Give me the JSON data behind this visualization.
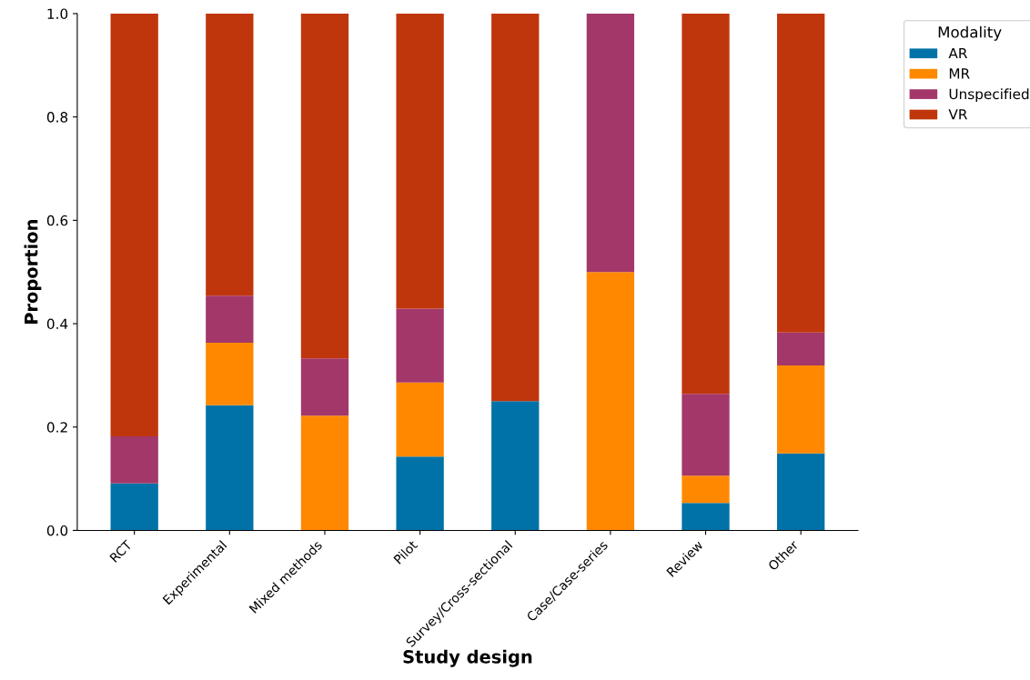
{
  "chart_data": {
    "type": "bar",
    "stacked": true,
    "xlabel": "Study design",
    "ylabel": "Proportion",
    "legend_title": "Modality",
    "legend": "top right",
    "categories": [
      "RCT",
      "Experimental",
      "Mixed methods",
      "Pilot",
      "Survey/Cross-sectional",
      "Case/Case-series",
      "Review",
      "Other"
    ],
    "series": [
      {
        "name": "AR",
        "color": "#0072a8",
        "values": [
          0.091,
          0.242,
          0,
          0.143,
          0.25,
          0,
          0.053,
          0.149
        ]
      },
      {
        "name": "MR",
        "color": "#ff8800",
        "values": [
          0,
          0.121,
          0.222,
          0.143,
          0,
          0.5,
          0.053,
          0.17
        ]
      },
      {
        "name": "Unspecified",
        "color": "#a3376a",
        "values": [
          0.091,
          0.091,
          0.111,
          0.143,
          0,
          0.5,
          0.158,
          0.064
        ]
      },
      {
        "name": "VR",
        "color": "#c0360c",
        "values": [
          0.818,
          0.546,
          0.667,
          0.571,
          0.75,
          0,
          0.736,
          0.617
        ]
      }
    ],
    "ylim": [
      0,
      1.0
    ],
    "yticks": [
      {
        "value": 0,
        "label": "0.0"
      },
      {
        "value": 0.2,
        "label": "0.2"
      },
      {
        "value": 0.4,
        "label": "0.4"
      },
      {
        "value": 0.6,
        "label": "0.6"
      },
      {
        "value": 0.8,
        "label": "0.8"
      },
      {
        "value": 1.0,
        "label": "1.0"
      }
    ],
    "grid": false
  }
}
